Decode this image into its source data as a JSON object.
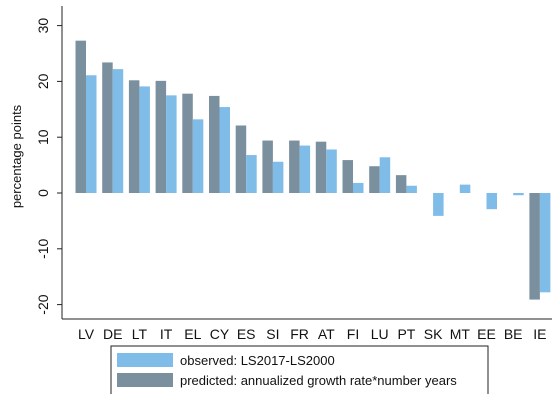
{
  "chart_data": {
    "type": "bar",
    "ylabel": "percentage points",
    "ylim": [
      -22,
      32
    ],
    "yticks": [
      -20,
      -10,
      0,
      10,
      20,
      30
    ],
    "grid": false,
    "legend_position": "bottom",
    "categories": [
      "LV",
      "DE",
      "LT",
      "IT",
      "EL",
      "CY",
      "ES",
      "SI",
      "FR",
      "AT",
      "FI",
      "LU",
      "PT",
      "SK",
      "MT",
      "EE",
      "BE",
      "IE"
    ],
    "series": [
      {
        "name": "predicted: annualized growth rate*number years",
        "color": "#7b909f",
        "values": [
          27.3,
          23.4,
          20.2,
          20.1,
          17.8,
          17.4,
          12.1,
          9.4,
          9.4,
          9.2,
          5.9,
          4.8,
          3.2,
          0,
          0,
          0,
          0,
          -19.1
        ]
      },
      {
        "name": "observed: LS2017-LS2000",
        "color": "#7fbce8",
        "values": [
          21.1,
          22.2,
          19.1,
          17.5,
          13.2,
          15.4,
          6.8,
          5.6,
          8.5,
          7.8,
          1.8,
          6.4,
          1.3,
          -4.1,
          1.5,
          -2.9,
          -0.4,
          -17.8
        ]
      }
    ]
  }
}
